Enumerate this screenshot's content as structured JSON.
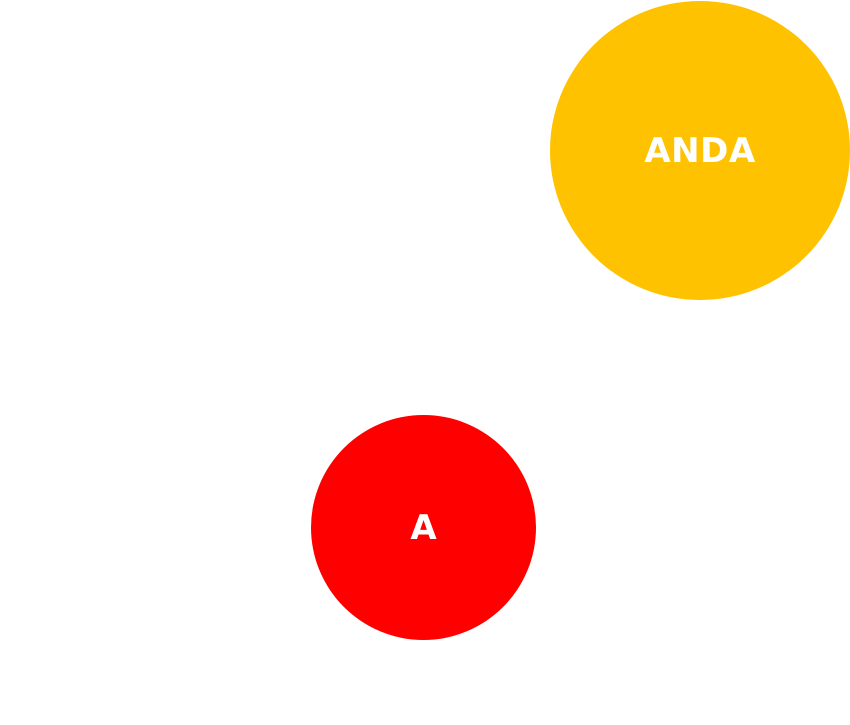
{
  "bubbles": {
    "large": {
      "label": "ANDA",
      "color": "#FFC200"
    },
    "small": {
      "label": "A",
      "color": "#FF0000"
    }
  }
}
